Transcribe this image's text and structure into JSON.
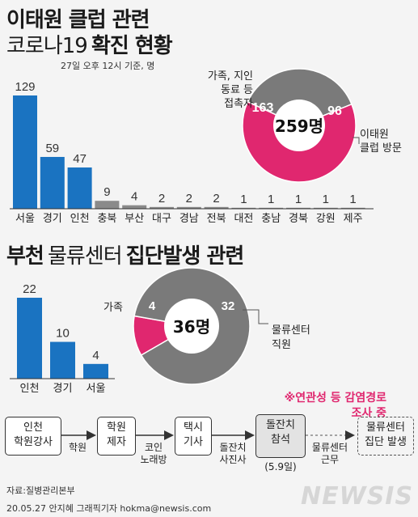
{
  "header": {
    "title": "이태원 클럽 관련",
    "subtitle_prefix": "코로나19",
    "subtitle_bold": "확진 현황",
    "note": "27일 오후 12시 기준, 명"
  },
  "section2": {
    "title_bold1": "부천",
    "title_regular": "물류센터",
    "title_bold2": "집단발생 관련"
  },
  "chart_data": [
    {
      "type": "bar",
      "title": "이태원 클럽 관련 코로나19 확진 현황",
      "categories": [
        "서울",
        "경기",
        "인천",
        "충북",
        "부산",
        "대구",
        "경남",
        "전북",
        "대전",
        "충남",
        "경북",
        "강원",
        "제주"
      ],
      "values": [
        129,
        59,
        47,
        9,
        4,
        2,
        2,
        2,
        1,
        1,
        1,
        1,
        1
      ],
      "highlight_count": 3,
      "colors": {
        "highlight": "#1a73c1",
        "other": "#8a8a8a"
      }
    },
    {
      "type": "pie",
      "total_label": "259명",
      "slices": [
        {
          "label": "이태원 클럽 방문",
          "value": 96,
          "color": "#7a7a7a"
        },
        {
          "label": "가족, 지인 동료 등 접촉자",
          "value": 163,
          "color": "#e0276f"
        }
      ]
    },
    {
      "type": "bar",
      "title": "부천 물류센터 집단발생 관련",
      "categories": [
        "인천",
        "경기",
        "서울"
      ],
      "values": [
        22,
        10,
        4
      ],
      "colors": {
        "bar": "#1a73c1"
      }
    },
    {
      "type": "pie",
      "total_label": "36명",
      "slices": [
        {
          "label": "가족",
          "value": 4,
          "color": "#e0276f"
        },
        {
          "label": "물류센터 직원",
          "value": 32,
          "color": "#7a7a7a"
        }
      ]
    }
  ],
  "pie1_labels": {
    "left": [
      "가족, 지인",
      "동료 등",
      "접촉자"
    ],
    "right": [
      "이태원",
      "클럽 방문"
    ],
    "left_value": "163",
    "right_value": "96"
  },
  "pie2_labels": {
    "left": "가족",
    "right": [
      "물류센터",
      "직원"
    ],
    "left_value": "4",
    "right_value": "32"
  },
  "flow": {
    "note": [
      "※연관성 등 감염경로",
      "조사 중"
    ],
    "nodes": [
      [
        "인천",
        "학원강사"
      ],
      [
        "학원",
        "제자"
      ],
      [
        "택시",
        "기사"
      ],
      [
        "돌잔치",
        "참석"
      ],
      [
        "물류센터",
        "집단 발생"
      ]
    ],
    "node3_sub": "(5.9일)",
    "edges": [
      [
        "학원"
      ],
      [
        "코인",
        "노래방"
      ],
      [
        "돌잔치",
        "사진사"
      ],
      [
        "물류센터",
        "근무"
      ]
    ]
  },
  "footer": {
    "source": "자료:질병관리본부",
    "credit": "20.05.27 안지혜 그래픽기자 hokma@newsis.com",
    "watermark": "NEWSIS"
  }
}
